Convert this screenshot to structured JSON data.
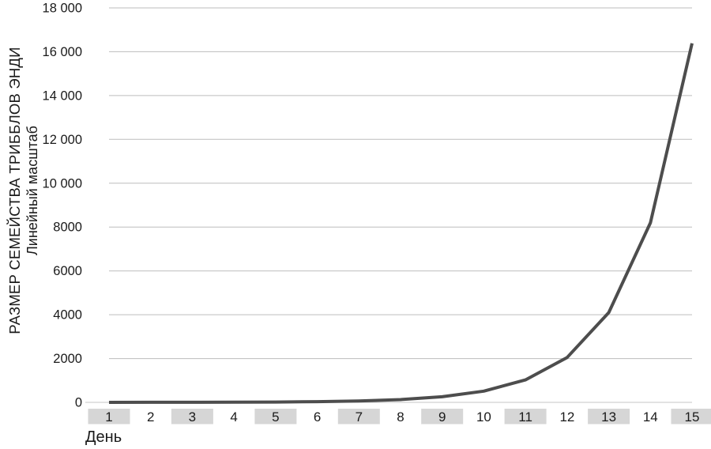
{
  "chart_data": {
    "type": "line",
    "title": "",
    "ylabel_line1": "РАЗМЕР СЕМЕЙСТВА ТРИББЛОВ ЭНДИ",
    "ylabel_line2": "Линейный масштаб",
    "xlabel": "День",
    "x": [
      1,
      2,
      3,
      4,
      5,
      6,
      7,
      8,
      9,
      10,
      11,
      12,
      13,
      14,
      15
    ],
    "values": [
      1,
      2,
      4,
      8,
      16,
      32,
      64,
      128,
      256,
      512,
      1024,
      2048,
      4096,
      8192,
      16384
    ],
    "ylim": [
      0,
      18000
    ],
    "yticks": [
      {
        "value": 0,
        "label": "0"
      },
      {
        "value": 2000,
        "label": "2000"
      },
      {
        "value": 4000,
        "label": "4000"
      },
      {
        "value": 6000,
        "label": "6000"
      },
      {
        "value": 8000,
        "label": "8000"
      },
      {
        "value": 10000,
        "label": "10 000"
      },
      {
        "value": 12000,
        "label": "12 000"
      },
      {
        "value": 14000,
        "label": "14 000"
      },
      {
        "value": 16000,
        "label": "16 000"
      },
      {
        "value": 18000,
        "label": "18 000"
      }
    ],
    "shaded_x_labels": [
      1,
      3,
      5,
      7,
      9,
      11,
      13,
      15
    ],
    "grid": true,
    "legend": false,
    "colors": {
      "line": "#4d4d4d",
      "grid": "#bdbdbd",
      "zero_line": "#c4c4c4",
      "band": "#d6d6d6",
      "text": "#1a1a1a"
    }
  }
}
